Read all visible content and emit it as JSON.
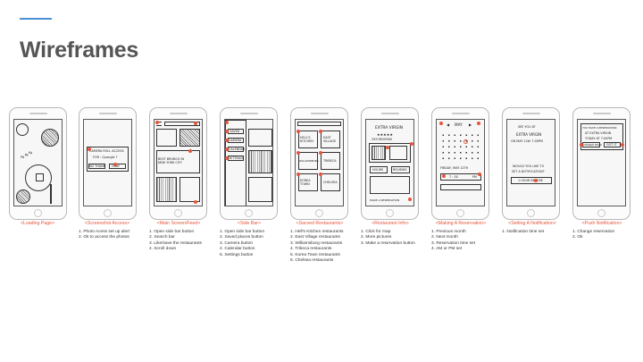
{
  "slide": {
    "title": "Wireframes",
    "accent_color": "#4a8fd6",
    "caption_color": "#e5553d"
  },
  "screens": [
    {
      "caption": "<Loading Page>",
      "notes": []
    },
    {
      "caption": "<Screenshot Access>",
      "notes": [
        "1. Photo Acess set up alert",
        "2. Ok to access the photos"
      ],
      "sketch": {
        "alert_line1": "CAMERA ROLL ACCESS",
        "alert_line2": "FOR : Quangle ?",
        "btn_no": "NO THANK",
        "btn_ok": "OKAY"
      }
    },
    {
      "caption": "<Main Screen/Feed>",
      "notes": [
        "1. Open side bar button",
        "2. Search bar",
        "3. Like/save the restaurants",
        "4. Scroll down"
      ],
      "sketch": {
        "note": "BEST BRUNCH IN NEW YORK CITY"
      }
    },
    {
      "caption": "<Side Bar>",
      "notes": [
        "1. Open side bar button",
        "2. Saved places button",
        "3. Camera button",
        "4. Calendar button",
        "5. Settings button"
      ],
      "sketch": {
        "items": [
          "SAVED",
          "CAMERA",
          "CALENDAR",
          "SETTINGS"
        ]
      }
    },
    {
      "caption": "<Sacved Restaurants>",
      "notes": [
        "1. Hell's Kitchen restaurants",
        "2. East Village restaurants",
        "3. Williamsburg restaurants",
        "4. Tribeca restaurants",
        "5. Korea Town restaurants",
        "6. Chelsea restaurants"
      ],
      "sketch": {
        "tiles": [
          "HELL'S KITCHEN",
          "EAST VILLAGE",
          "WILLIAMSBURG",
          "TRIBECA",
          "KOREA TOWN",
          "CHELSEA"
        ]
      }
    },
    {
      "caption": "<Restaurant Info>",
      "notes": [
        "1. Click for map",
        "2. More pictures",
        "3. Make a reservation button"
      ],
      "sketch": {
        "name": "EXTRA VIRGIN",
        "rating": "★★★★★",
        "sub": "259 REVIEWS",
        "tag_a": "HOURS",
        "tag_b": "REVIEWS",
        "cta": "MAKE A RESERVATION"
      }
    },
    {
      "caption": "<Making A Reservation>",
      "notes": [
        "1. Previous month",
        "2. Next month",
        "3. Reservation time set",
        "4. AM or PM set"
      ],
      "sketch": {
        "month": "MAY",
        "date": "FRIDAY, MAY 12TH",
        "time": "7 : 00",
        "ampm": "PM"
      }
    },
    {
      "caption": "<Setting A Notification>",
      "notes": [
        "1. Notification time set"
      ],
      "sketch": {
        "line1": "SEE YOU AT",
        "line2": "EXTRA VIRGIN",
        "line3": "ON MAY 12th 7:00PM",
        "q1": "WOULD YOU LIKE TO",
        "q2": "SET A NOTIFICATION?",
        "opt": "1 HOUR BEFORE"
      }
    },
    {
      "caption": "<Push Notification>",
      "notes": [
        "1. Change reservation",
        "2. Ok"
      ],
      "sketch": {
        "l1": "YOU HAVE A RESERVATION",
        "l2": "AT EXTRA VIRGIN",
        "l3": "TODAY AT 7:00PM",
        "btn_change": "CHANGE RSVN",
        "btn_ok": "GOT IT"
      }
    }
  ]
}
